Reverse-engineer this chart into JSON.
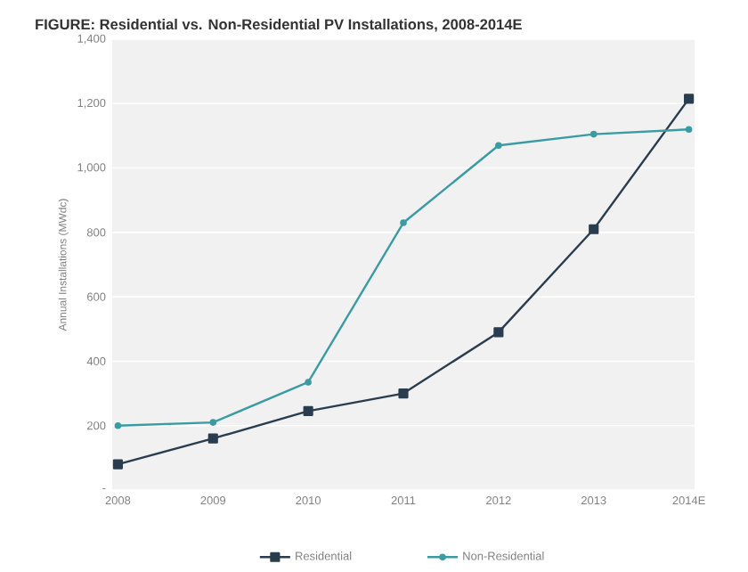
{
  "chart_data": {
    "type": "line",
    "title": "FIGURE: Residential vs. Non-Residential PV Installations, 2008-2014E",
    "ylabel": "Annual Installations (MWdc)",
    "categories": [
      "2008",
      "2009",
      "2010",
      "2011",
      "2012",
      "2013",
      "2014E"
    ],
    "series": [
      {
        "name": "Residential",
        "color": "#2a3d4f",
        "marker": "square",
        "values": [
          80,
          160,
          245,
          300,
          490,
          810,
          1215
        ]
      },
      {
        "name": "Non-Residential",
        "color": "#3a9ca3",
        "marker": "circle",
        "values": [
          200,
          210,
          335,
          830,
          1070,
          1105,
          1120
        ]
      }
    ],
    "ylim": [
      0,
      1400
    ],
    "yticks": [
      {
        "value": 0,
        "label": "-"
      },
      200,
      400,
      600,
      800,
      {
        "value": 1000,
        "label": "1,000"
      },
      {
        "value": 1200,
        "label": "1,200"
      },
      {
        "value": 1400,
        "label": "1,400"
      }
    ],
    "grid": "y",
    "legend": "bottom"
  }
}
